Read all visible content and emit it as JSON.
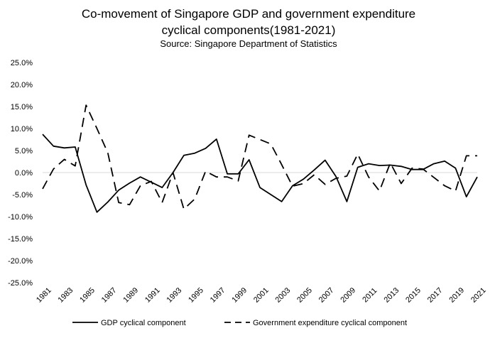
{
  "chart_data": {
    "type": "line",
    "title_line1": "Co-movement of Singapore GDP and government expenditure",
    "title_line2": "cyclical components(1981-2021)",
    "subtitle": "Source: Singapore Department of Statistics",
    "xlabel": "",
    "ylabel": "",
    "ylim": [
      -25,
      25
    ],
    "yticks": [
      "25.0%",
      "20.0%",
      "15.0%",
      "10.0%",
      "5.0%",
      "0.0%",
      "-5.0%",
      "-10.0%",
      "-15.0%",
      "-20.0%",
      "-25.0%"
    ],
    "x": [
      1981,
      1982,
      1983,
      1984,
      1985,
      1986,
      1987,
      1988,
      1989,
      1990,
      1991,
      1992,
      1993,
      1994,
      1995,
      1996,
      1997,
      1998,
      1999,
      2000,
      2001,
      2002,
      2003,
      2004,
      2005,
      2006,
      2007,
      2008,
      2009,
      2010,
      2011,
      2012,
      2013,
      2014,
      2015,
      2016,
      2017,
      2018,
      2019,
      2020,
      2021
    ],
    "xticks": [
      "1981",
      "1983",
      "1985",
      "1987",
      "1989",
      "1991",
      "1993",
      "1995",
      "1997",
      "1999",
      "2001",
      "2003",
      "2005",
      "2007",
      "2009",
      "2011",
      "2013",
      "2015",
      "2017",
      "2019",
      "2021"
    ],
    "series": [
      {
        "name": "GDP cyclical component",
        "style": "solid",
        "color": "#000000",
        "values": [
          8.7,
          6.0,
          5.6,
          5.8,
          -2.8,
          -9.0,
          -6.7,
          -4.0,
          -2.4,
          -1.0,
          -2.2,
          -3.4,
          0.0,
          3.9,
          4.4,
          5.5,
          7.6,
          -0.3,
          -0.3,
          2.9,
          -3.4,
          -5.0,
          -6.6,
          -3.0,
          -1.5,
          0.6,
          2.8,
          -0.9,
          -6.6,
          1.2,
          2.0,
          1.6,
          1.7,
          1.4,
          0.7,
          0.7,
          2.0,
          2.6,
          1.0,
          -5.5,
          -1.0
        ]
      },
      {
        "name": "Government expenditure cyclical component",
        "style": "dashed",
        "color": "#000000",
        "values": [
          -3.7,
          0.8,
          3.0,
          1.5,
          15.3,
          10.0,
          4.5,
          -6.8,
          -7.3,
          -3.0,
          -2.0,
          -6.8,
          0.0,
          -8.3,
          -6.0,
          0.3,
          -1.0,
          -1.0,
          -1.9,
          8.5,
          7.5,
          6.5,
          1.8,
          -3.1,
          -2.5,
          -0.5,
          -2.7,
          -1.3,
          -0.8,
          4.2,
          -1.0,
          -4.2,
          2.2,
          -2.5,
          1.0,
          0.8,
          -1.1,
          -3.0,
          -4.2,
          3.8,
          3.8
        ]
      }
    ],
    "legend_position": "bottom"
  }
}
